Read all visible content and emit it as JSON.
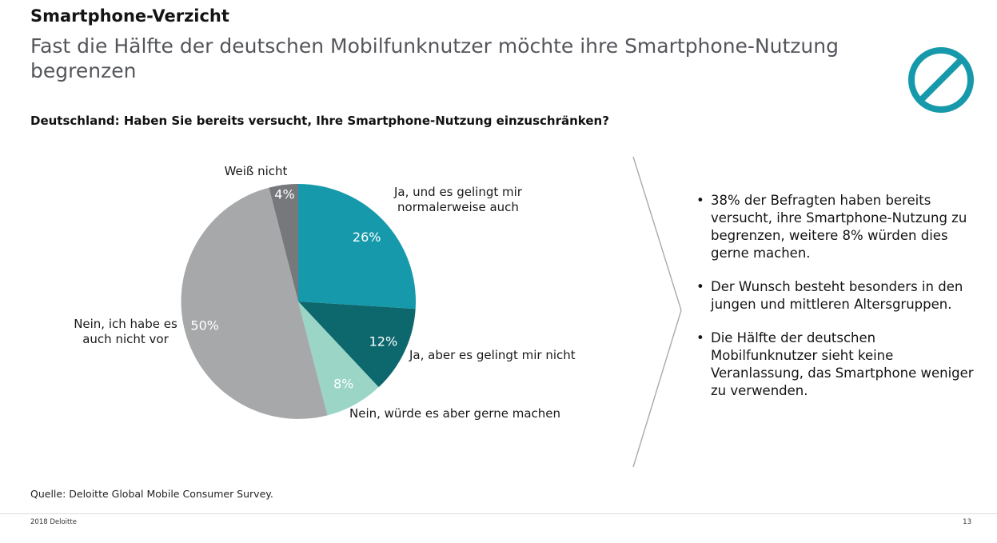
{
  "header": {
    "title": "Smartphone-Verzicht",
    "subtitle": "Fast die Hälfte der deutschen Mobilfunknutzer möchte ihre Smartphone-Nutzung begrenzen"
  },
  "question": "Deutschland: Haben Sie bereits versucht, Ihre Smartphone-Nutzung einzuschränken?",
  "chart_data": {
    "type": "pie",
    "title": "Deutschland: Haben Sie bereits versucht, Ihre Smartphone-Nutzung einzuschränken?",
    "unit": "percent",
    "direction": "clockwise",
    "start_angle_deg": 0,
    "value_label_color": "#ffffff",
    "slices": [
      {
        "label": "Ja, und es gelingt mir normalerweise auch",
        "value": 26,
        "value_label": "26%",
        "color": "#1799ac"
      },
      {
        "label": "Ja, aber es gelingt mir nicht",
        "value": 12,
        "value_label": "12%",
        "color": "#0d686d"
      },
      {
        "label": "Nein, würde es aber gerne machen",
        "value": 8,
        "value_label": "8%",
        "color": "#9ad5c6"
      },
      {
        "label": "Nein, ich habe es auch nicht vor",
        "value": 50,
        "value_label": "50%",
        "color": "#a7a8aa"
      },
      {
        "label": "Weiß nicht",
        "value": 4,
        "value_label": "4%",
        "color": "#77787b"
      }
    ]
  },
  "bullets": [
    "38% der Befragten haben bereits versucht, ihre Smartphone-Nutzung zu begrenzen, weitere 8% würden dies gerne machen.",
    "Der Wunsch besteht besonders in den jungen und mittleren Altersgruppen.",
    "Die Hälfte der deutschen Mobilfunknutzer sieht keine Veranlassung, das Smartphone weniger zu verwenden."
  ],
  "source": "Quelle: Deloitte Global Mobile Consumer Survey.",
  "footer": {
    "copyright": "2018 Deloitte",
    "page": "13"
  },
  "colors": {
    "accent_teal": "#1799ac",
    "chevron_gray": "#a9aaab",
    "subtitle_gray": "#54565b"
  }
}
